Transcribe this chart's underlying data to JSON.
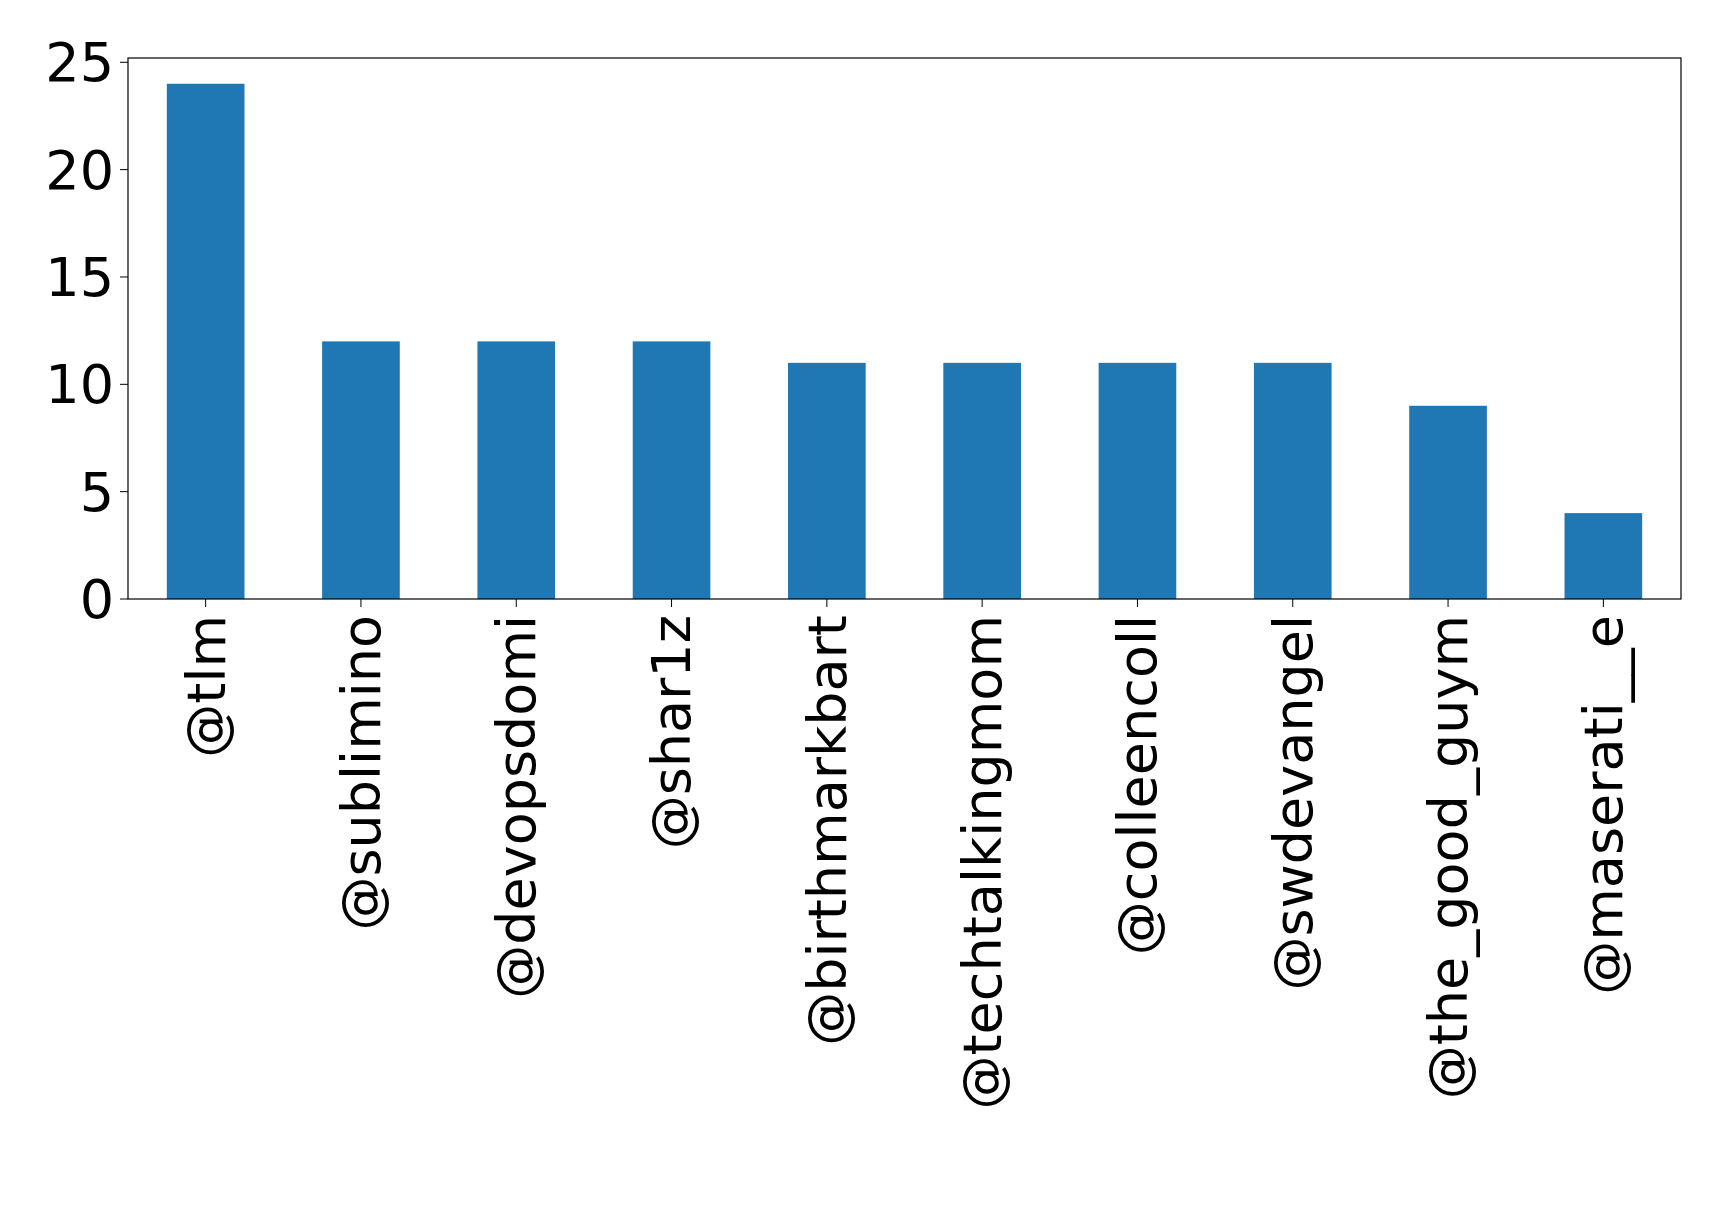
{
  "chart_data": {
    "type": "bar",
    "categories": [
      "@tlm",
      "@sublimino",
      "@devopsdomi",
      "@shar1z",
      "@birthmarkbart",
      "@techtalkingmom",
      "@colleencoll",
      "@swdevangel",
      "@the_good_guym",
      "@maserati__e"
    ],
    "values": [
      24,
      12,
      12,
      12,
      11,
      11,
      11,
      11,
      9,
      4
    ],
    "color": "#1f77b4",
    "ylim": [
      0,
      25.2
    ],
    "yticks": [
      0,
      5,
      10,
      15,
      20,
      25
    ]
  }
}
